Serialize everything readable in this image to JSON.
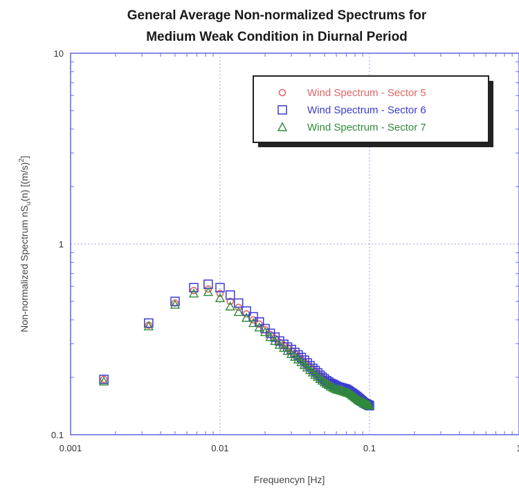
{
  "chart_data": {
    "type": "scatter",
    "title": "General Average Non-normalized Spectrums for",
    "subtitle": "Medium Weak Condition in Diurnal Period",
    "xlabel": "Frequencyn [Hz]",
    "ylabel": "Non-normalized Spectrum nS_u(n) [(m/s)²]",
    "ylabel_parts": {
      "pre": "Non-normalized Spectrum  nS",
      "sub": "u",
      "mid": "(n)  [(m/s)",
      "sup": "2",
      "post": "]"
    },
    "x_scale": "log",
    "y_scale": "log",
    "xlim": [
      0.001,
      1
    ],
    "ylim": [
      0.1,
      10
    ],
    "x_ticks": [
      "0.001",
      "0.01",
      "0.1",
      "1"
    ],
    "y_ticks": [
      "0.1",
      "1",
      "10"
    ],
    "grid": true,
    "legend_position": "top-right",
    "series": [
      {
        "name": "Wind Spectrum - Sector 5",
        "marker": "circle",
        "color": "#e06464",
        "x": [
          0.00167,
          0.00333,
          0.005,
          0.00667,
          0.00833,
          0.01,
          0.0117,
          0.0133,
          0.015,
          0.0167,
          0.0183,
          0.02,
          0.0217,
          0.0233,
          0.025,
          0.0267,
          0.0283,
          0.03,
          0.0317,
          0.0333,
          0.035,
          0.0367,
          0.0383,
          0.04,
          0.0417,
          0.0433,
          0.045,
          0.0467,
          0.0483,
          0.05,
          0.0517,
          0.0533,
          0.055,
          0.0567,
          0.0583,
          0.06,
          0.0617,
          0.0633,
          0.065,
          0.0667,
          0.0683,
          0.07,
          0.0717,
          0.0733,
          0.075,
          0.0767,
          0.0783,
          0.08,
          0.0817,
          0.0833,
          0.085,
          0.0867,
          0.0883,
          0.09,
          0.0917,
          0.0933,
          0.095,
          0.0967,
          0.0983,
          0.1
        ],
        "y": [
          0.195,
          0.375,
          0.49,
          0.57,
          0.58,
          0.55,
          0.5,
          0.465,
          0.43,
          0.4,
          0.38,
          0.355,
          0.335,
          0.32,
          0.305,
          0.295,
          0.285,
          0.275,
          0.265,
          0.257,
          0.248,
          0.24,
          0.233,
          0.226,
          0.22,
          0.214,
          0.208,
          0.203,
          0.198,
          0.193,
          0.189,
          0.185,
          0.182,
          0.179,
          0.177,
          0.176,
          0.175,
          0.174,
          0.173,
          0.172,
          0.171,
          0.17,
          0.169,
          0.168,
          0.166,
          0.164,
          0.162,
          0.16,
          0.158,
          0.156,
          0.154,
          0.152,
          0.15,
          0.149,
          0.148,
          0.147,
          0.146,
          0.145,
          0.144,
          0.143
        ]
      },
      {
        "name": "Wind Spectrum - Sector 6",
        "marker": "square",
        "color": "#3a3ad0",
        "x": [
          0.00167,
          0.00333,
          0.005,
          0.00667,
          0.00833,
          0.01,
          0.0117,
          0.0133,
          0.015,
          0.0167,
          0.0183,
          0.02,
          0.0217,
          0.0233,
          0.025,
          0.0267,
          0.0283,
          0.03,
          0.0317,
          0.0333,
          0.035,
          0.0367,
          0.0383,
          0.04,
          0.0417,
          0.0433,
          0.045,
          0.0467,
          0.0483,
          0.05,
          0.0517,
          0.0533,
          0.055,
          0.0567,
          0.0583,
          0.06,
          0.0617,
          0.0633,
          0.065,
          0.0667,
          0.0683,
          0.07,
          0.0717,
          0.0733,
          0.075,
          0.0767,
          0.0783,
          0.08,
          0.0817,
          0.0833,
          0.085,
          0.0867,
          0.0883,
          0.09,
          0.0917,
          0.0933,
          0.095,
          0.0967,
          0.0983,
          0.1
        ],
        "y": [
          0.195,
          0.385,
          0.5,
          0.59,
          0.615,
          0.59,
          0.54,
          0.49,
          0.445,
          0.415,
          0.39,
          0.36,
          0.34,
          0.325,
          0.31,
          0.298,
          0.288,
          0.28,
          0.27,
          0.262,
          0.254,
          0.246,
          0.238,
          0.23,
          0.223,
          0.217,
          0.211,
          0.205,
          0.2,
          0.196,
          0.192,
          0.189,
          0.186,
          0.184,
          0.182,
          0.18,
          0.178,
          0.177,
          0.176,
          0.175,
          0.174,
          0.173,
          0.171,
          0.169,
          0.167,
          0.165,
          0.163,
          0.161,
          0.159,
          0.157,
          0.155,
          0.153,
          0.151,
          0.149,
          0.147,
          0.146,
          0.145,
          0.144,
          0.143,
          0.142
        ]
      },
      {
        "name": "Wind Spectrum - Sector 7",
        "marker": "triangle",
        "color": "#2f8a3a",
        "x": [
          0.00167,
          0.00333,
          0.005,
          0.00667,
          0.00833,
          0.01,
          0.0117,
          0.0133,
          0.015,
          0.0167,
          0.0183,
          0.02,
          0.0217,
          0.0233,
          0.025,
          0.0267,
          0.0283,
          0.03,
          0.0317,
          0.0333,
          0.035,
          0.0367,
          0.0383,
          0.04,
          0.0417,
          0.0433,
          0.045,
          0.0467,
          0.0483,
          0.05,
          0.0517,
          0.0533,
          0.055,
          0.0567,
          0.0583,
          0.06,
          0.0617,
          0.0633,
          0.065,
          0.0667,
          0.0683,
          0.07,
          0.0717,
          0.0733,
          0.075,
          0.0767,
          0.0783,
          0.08,
          0.0817,
          0.0833,
          0.085,
          0.0867,
          0.0883,
          0.09,
          0.0917,
          0.0933,
          0.095,
          0.0967,
          0.0983,
          0.1
        ],
        "y": [
          0.19,
          0.37,
          0.48,
          0.55,
          0.56,
          0.52,
          0.47,
          0.44,
          0.41,
          0.385,
          0.365,
          0.345,
          0.325,
          0.31,
          0.296,
          0.285,
          0.275,
          0.265,
          0.256,
          0.248,
          0.24,
          0.232,
          0.225,
          0.218,
          0.212,
          0.206,
          0.201,
          0.196,
          0.192,
          0.188,
          0.185,
          0.182,
          0.179,
          0.177,
          0.175,
          0.173,
          0.172,
          0.171,
          0.17,
          0.169,
          0.168,
          0.167,
          0.166,
          0.165,
          0.163,
          0.161,
          0.159,
          0.157,
          0.155,
          0.153,
          0.151,
          0.15,
          0.149,
          0.148,
          0.147,
          0.146,
          0.145,
          0.144,
          0.143,
          0.142
        ]
      }
    ]
  }
}
